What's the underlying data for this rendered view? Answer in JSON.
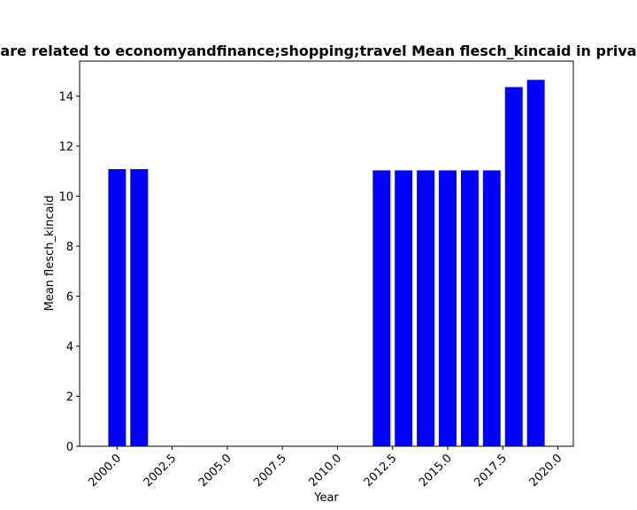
{
  "chart_data": {
    "type": "bar",
    "title": "are related to economyandfinance;shopping;travel Mean flesch_kincaid in priva",
    "xlabel": "Year",
    "ylabel": "Mean flesch_kincaid",
    "x": [
      2000,
      2001,
      2012,
      2013,
      2014,
      2015,
      2016,
      2017,
      2018,
      2019
    ],
    "values": [
      11.08,
      11.08,
      11.03,
      11.03,
      11.03,
      11.03,
      11.03,
      11.03,
      14.36,
      14.65
    ],
    "xlim": [
      1998.3,
      2020.7
    ],
    "ylim": [
      0,
      15.4
    ],
    "xticks": [
      "2000.0",
      "2002.5",
      "2005.0",
      "2007.5",
      "2010.0",
      "2012.5",
      "2015.0",
      "2017.5",
      "2020.0"
    ],
    "xtick_values": [
      2000,
      2002.5,
      2005,
      2007.5,
      2010,
      2012.5,
      2015,
      2017.5,
      2020
    ],
    "yticks": [
      "0",
      "2",
      "4",
      "6",
      "8",
      "10",
      "12",
      "14"
    ],
    "ytick_values": [
      0,
      2,
      4,
      6,
      8,
      10,
      12,
      14
    ],
    "bar_color": "#0000ff",
    "grid": false,
    "legend": "none"
  }
}
